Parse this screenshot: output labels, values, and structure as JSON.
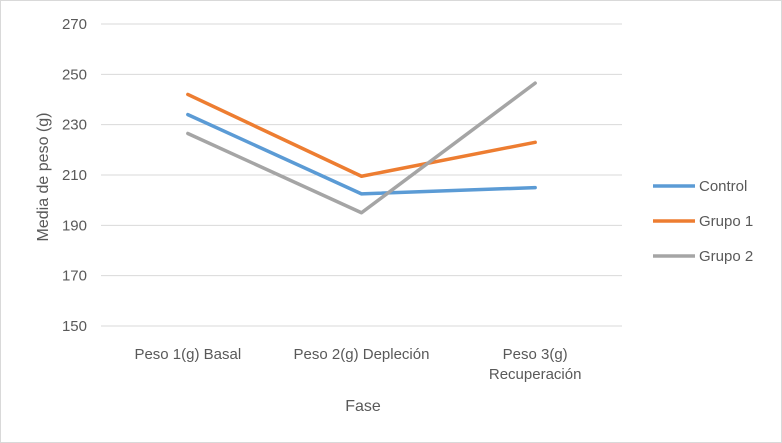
{
  "chart_data": {
    "type": "line",
    "title": "",
    "xlabel": "Fase",
    "ylabel": "Media de peso (g)",
    "categories": [
      [
        "Peso 1(g) Basal"
      ],
      [
        "Peso 2(g) Depleción"
      ],
      [
        "Peso 3(g)",
        "Recuperación"
      ]
    ],
    "ylim": [
      150,
      270
    ],
    "yticks": [
      150,
      170,
      190,
      210,
      230,
      250,
      270
    ],
    "grid": "horizontal",
    "legend_position": "right",
    "series": [
      {
        "name": "Control",
        "color": "#5b9bd5",
        "values": [
          234,
          202.5,
          205
        ]
      },
      {
        "name": "Grupo 1",
        "color": "#ed7d31",
        "values": [
          242,
          209.5,
          223
        ]
      },
      {
        "name": "Grupo 2",
        "color": "#a5a5a5",
        "values": [
          226.5,
          195,
          246.5
        ]
      }
    ]
  }
}
